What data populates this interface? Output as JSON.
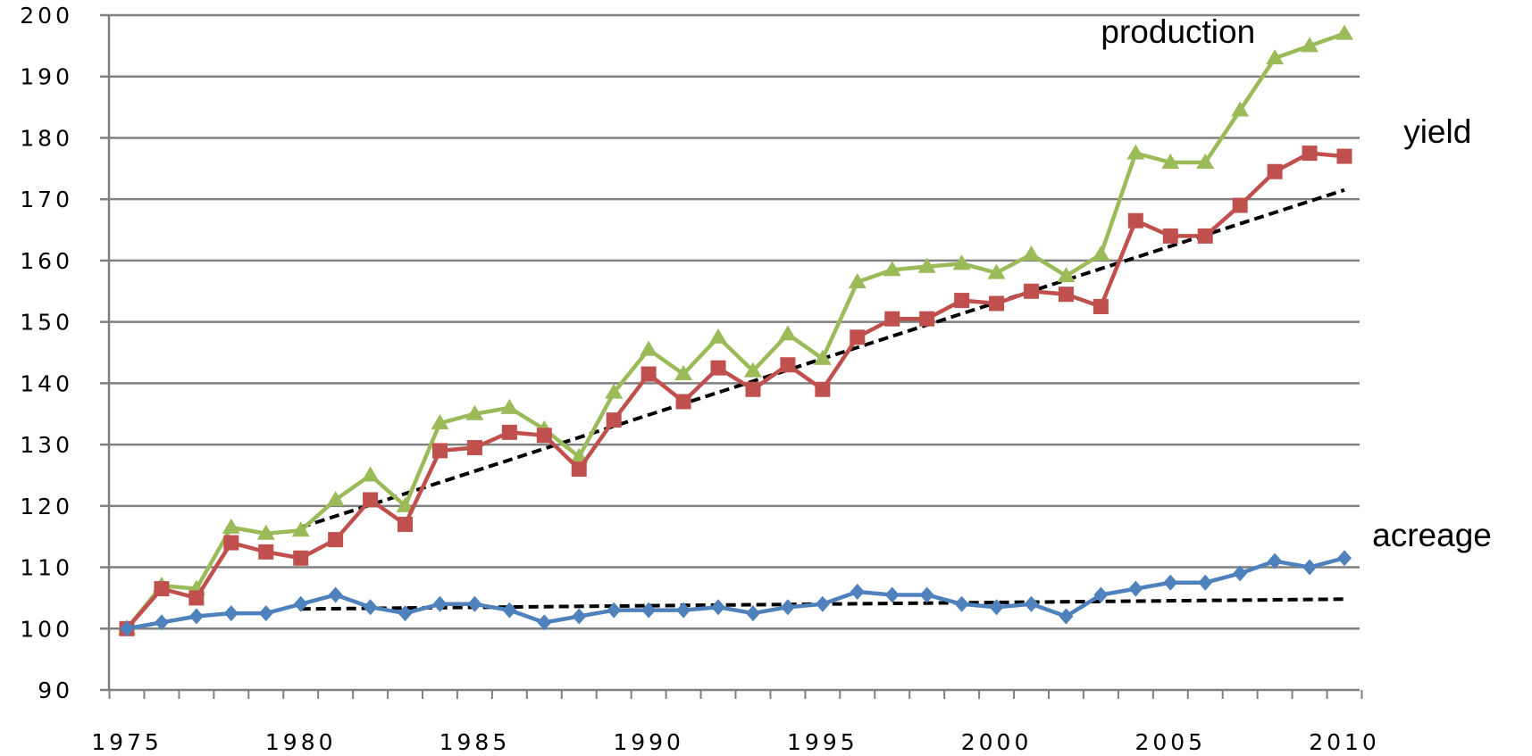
{
  "chart_data": {
    "type": "line",
    "title": "",
    "xlabel": "",
    "ylabel": "",
    "xlim": [
      1975,
      2010
    ],
    "ylim": [
      90,
      200
    ],
    "y_ticks": [
      90,
      100,
      110,
      120,
      130,
      140,
      150,
      160,
      170,
      180,
      190,
      200
    ],
    "x_ticks": [
      1975,
      1980,
      1985,
      1990,
      1995,
      2000,
      2005,
      2010
    ],
    "grid": "horizontal",
    "legend": "none",
    "x": [
      1975,
      1976,
      1977,
      1978,
      1979,
      1980,
      1981,
      1982,
      1983,
      1984,
      1985,
      1986,
      1987,
      1988,
      1989,
      1990,
      1991,
      1992,
      1993,
      1994,
      1995,
      1996,
      1997,
      1998,
      1999,
      2000,
      2001,
      2002,
      2003,
      2004,
      2005,
      2006,
      2007,
      2008,
      2009,
      2010
    ],
    "series": [
      {
        "name": "production",
        "color": "#9BBB59",
        "marker": "triangle",
        "values": [
          100,
          107,
          106.5,
          116.5,
          115.5,
          116,
          121,
          125,
          120,
          133.5,
          135,
          136,
          132.5,
          128,
          138.5,
          145.5,
          141.5,
          147.5,
          142,
          148,
          144,
          156.5,
          158.5,
          159,
          159.5,
          158,
          161,
          157.5,
          161,
          177.5,
          176,
          176,
          184.5,
          193,
          195,
          197
        ]
      },
      {
        "name": "yield",
        "color": "#C0504D",
        "marker": "square",
        "values": [
          100,
          106.5,
          105,
          114,
          112.5,
          111.5,
          114.5,
          121,
          117,
          129,
          129.5,
          132,
          131.5,
          126,
          134,
          141.5,
          137,
          142.5,
          139,
          143,
          139,
          147.5,
          150.5,
          150.5,
          153.5,
          153,
          155,
          154.5,
          152.5,
          166.5,
          164,
          164,
          169,
          174.5,
          177.5,
          177
        ]
      },
      {
        "name": "acreage",
        "color": "#4F81BD",
        "marker": "diamond",
        "values": [
          100,
          101,
          102,
          102.5,
          102.5,
          104,
          105.5,
          103.5,
          102.5,
          104,
          104,
          103,
          101,
          102,
          103,
          103,
          103,
          103.5,
          102.5,
          103.5,
          104,
          106,
          105.5,
          105.5,
          104,
          103.5,
          104,
          102,
          105.5,
          106.5,
          107.5,
          107.5,
          109,
          111,
          110,
          111.5
        ]
      }
    ],
    "trendlines": [
      {
        "series": "yield",
        "x": [
          1980,
          2010
        ],
        "values": [
          116.5,
          171.5
        ],
        "color": "#000000",
        "style": "dashed"
      },
      {
        "series": "acreage",
        "x": [
          1980,
          2010
        ],
        "values": [
          103.2,
          104.8
        ],
        "color": "#000000",
        "style": "dashed"
      }
    ],
    "annotations": [
      {
        "text": "production",
        "x": 2003.0,
        "y": 195.5
      },
      {
        "text": "yield",
        "x": 2011.7,
        "y": 179.2
      },
      {
        "text": "acreage",
        "x": 2010.8,
        "y": 113.4
      }
    ]
  }
}
